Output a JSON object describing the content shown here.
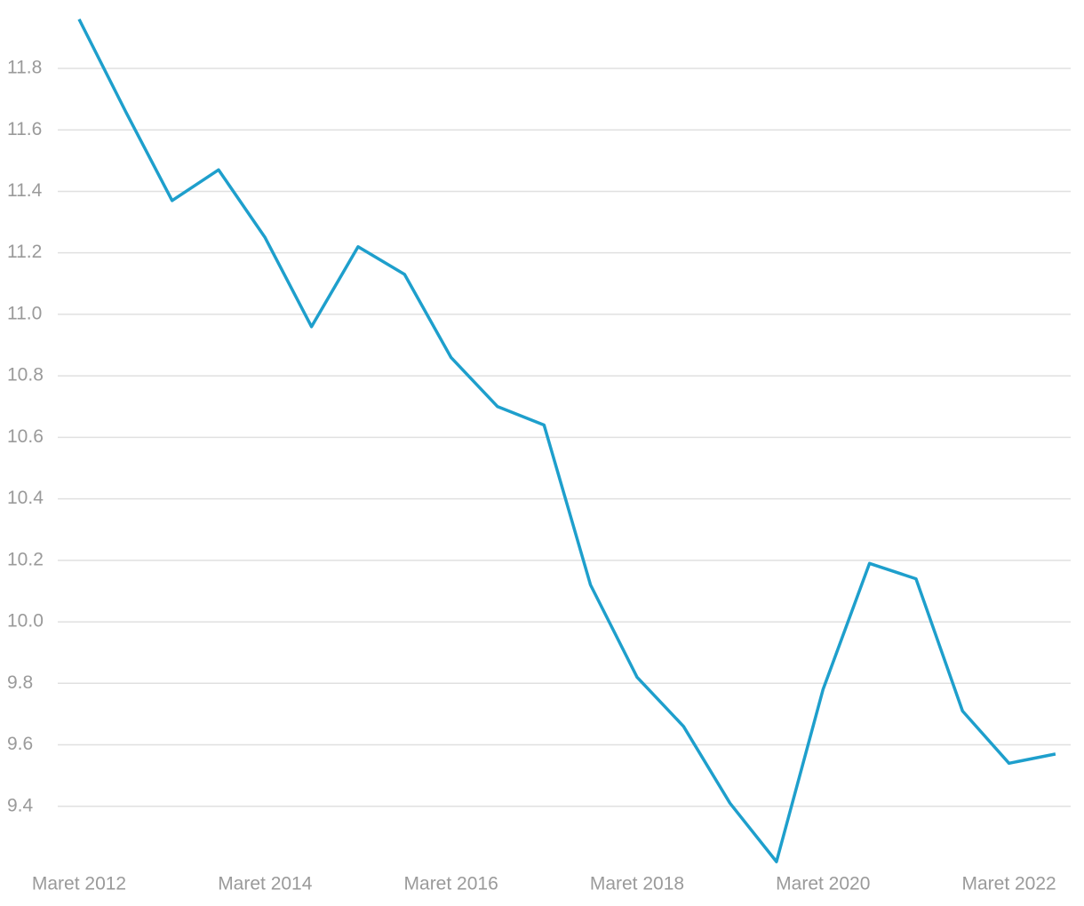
{
  "chart_data": {
    "type": "line",
    "categories": [
      "Maret 2012",
      null,
      null,
      null,
      "Maret 2014",
      null,
      null,
      null,
      "Maret 2016",
      null,
      null,
      null,
      "Maret 2018",
      null,
      null,
      null,
      "Maret 2020",
      null,
      null,
      null,
      "Maret 2022",
      null
    ],
    "series": [
      {
        "color": "#1e9fcc",
        "values": [
          11.96,
          11.66,
          11.37,
          11.47,
          11.25,
          10.96,
          11.22,
          11.13,
          10.86,
          10.7,
          10.64,
          10.12,
          9.82,
          9.66,
          9.41,
          9.22,
          9.78,
          10.19,
          10.14,
          9.71,
          9.54,
          9.57
        ]
      }
    ],
    "ylim": [
      9.2,
      12.0
    ],
    "yticks": [
      9.4,
      9.6,
      9.8,
      {
        "value": 10.0,
        "label": "10.0"
      },
      10.2,
      10.4,
      10.6,
      10.8,
      {
        "value": 11.0,
        "label": "11.0"
      },
      11.2,
      11.4,
      11.6,
      11.8
    ],
    "grid": true
  }
}
